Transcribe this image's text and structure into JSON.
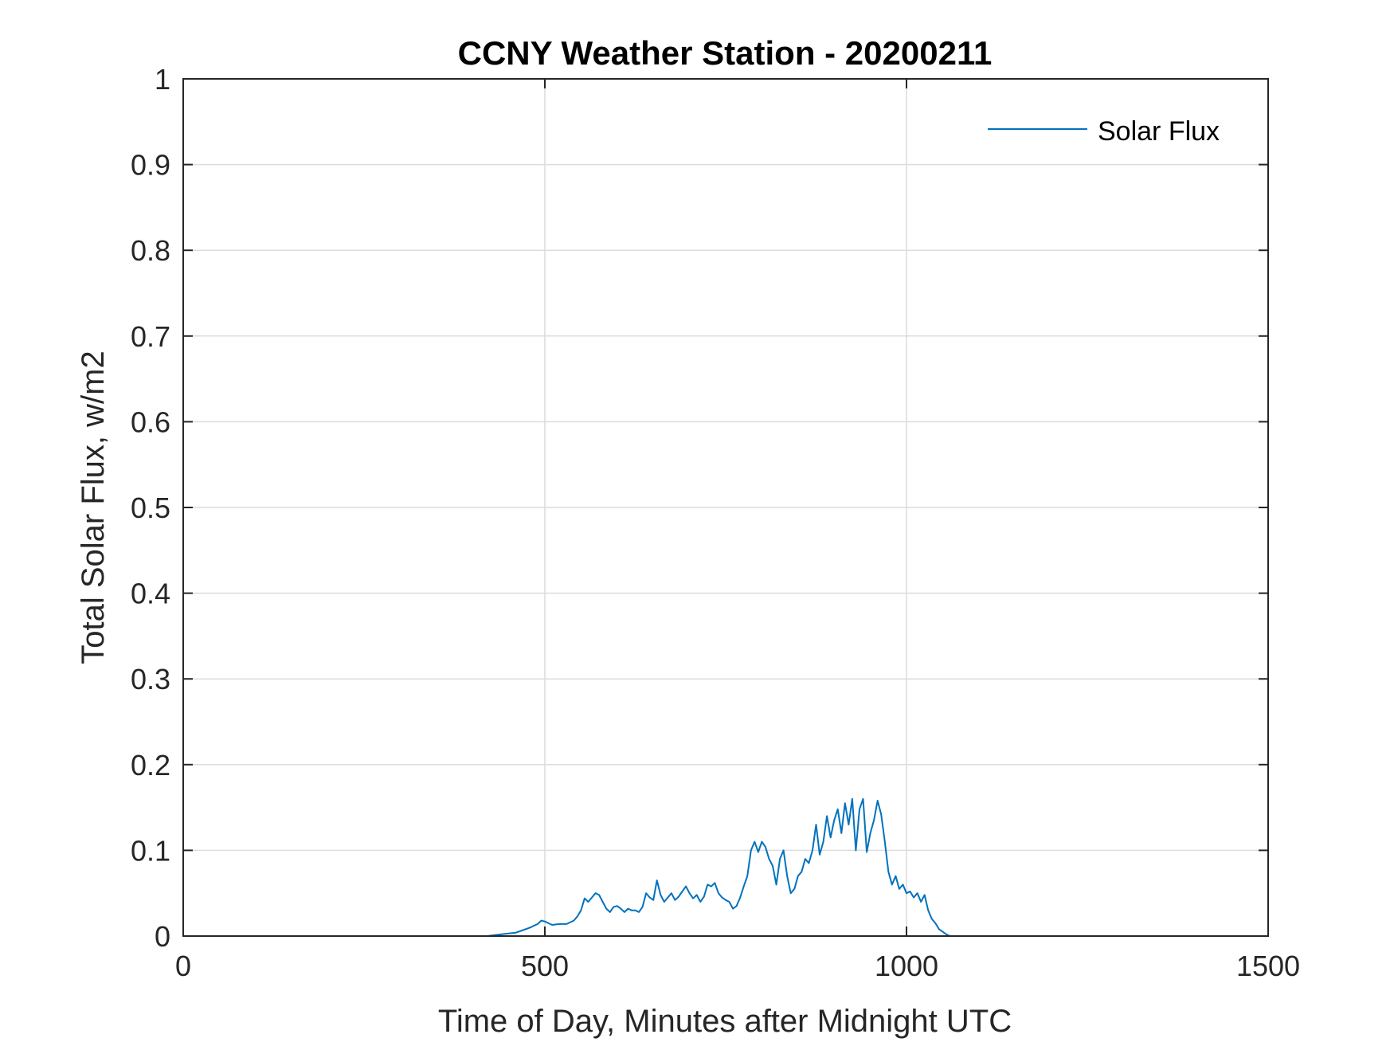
{
  "chart_data": {
    "type": "line",
    "title": "CCNY Weather Station - 20200211",
    "xlabel": "Time of Day, Minutes after Midnight UTC",
    "ylabel": "Total Solar Flux, w/m2",
    "xlim": [
      0,
      1500
    ],
    "ylim": [
      0,
      1
    ],
    "xticks": [
      0,
      500,
      1000,
      1500
    ],
    "xtick_labels": [
      "0",
      "500",
      "1000",
      "1500"
    ],
    "yticks": [
      0,
      0.1,
      0.2,
      0.3,
      0.4,
      0.5,
      0.6,
      0.7,
      0.8,
      0.9,
      1
    ],
    "ytick_labels": [
      "0",
      "0.1",
      "0.2",
      "0.3",
      "0.4",
      "0.5",
      "0.6",
      "0.7",
      "0.8",
      "0.9",
      "1"
    ],
    "grid": true,
    "legend_position": "top-right",
    "colors": {
      "series": "#0072BD",
      "axes": "#262626",
      "grid": "#dcdcdc"
    },
    "series": [
      {
        "name": "Solar Flux",
        "x": [
          0,
          100,
          200,
          300,
          400,
          420,
          440,
          460,
          470,
          480,
          490,
          495,
          500,
          505,
          510,
          520,
          530,
          540,
          545,
          550,
          555,
          560,
          565,
          570,
          575,
          580,
          585,
          590,
          595,
          600,
          605,
          610,
          615,
          620,
          625,
          630,
          635,
          640,
          645,
          650,
          655,
          660,
          665,
          670,
          675,
          680,
          685,
          690,
          695,
          700,
          705,
          710,
          715,
          720,
          725,
          730,
          735,
          740,
          745,
          750,
          755,
          760,
          765,
          770,
          775,
          780,
          785,
          790,
          795,
          800,
          805,
          810,
          815,
          820,
          825,
          830,
          835,
          840,
          845,
          850,
          855,
          860,
          865,
          870,
          875,
          880,
          885,
          890,
          895,
          900,
          905,
          910,
          915,
          920,
          925,
          930,
          935,
          940,
          945,
          950,
          955,
          960,
          965,
          970,
          975,
          980,
          985,
          990,
          995,
          1000,
          1005,
          1010,
          1015,
          1020,
          1025,
          1030,
          1035,
          1040,
          1045,
          1050,
          1055,
          1060,
          1100,
          1200,
          1300,
          1400,
          1440
        ],
        "y": [
          0,
          0,
          0,
          0,
          0,
          0,
          0.002,
          0.004,
          0.007,
          0.01,
          0.014,
          0.018,
          0.017,
          0.015,
          0.013,
          0.014,
          0.014,
          0.018,
          0.023,
          0.03,
          0.044,
          0.04,
          0.045,
          0.05,
          0.048,
          0.04,
          0.032,
          0.028,
          0.034,
          0.035,
          0.032,
          0.028,
          0.032,
          0.03,
          0.03,
          0.028,
          0.034,
          0.05,
          0.045,
          0.042,
          0.065,
          0.048,
          0.04,
          0.045,
          0.05,
          0.042,
          0.046,
          0.052,
          0.058,
          0.05,
          0.044,
          0.048,
          0.04,
          0.046,
          0.06,
          0.058,
          0.062,
          0.05,
          0.045,
          0.042,
          0.04,
          0.032,
          0.035,
          0.045,
          0.058,
          0.07,
          0.1,
          0.11,
          0.098,
          0.11,
          0.104,
          0.09,
          0.082,
          0.06,
          0.09,
          0.1,
          0.07,
          0.05,
          0.055,
          0.07,
          0.075,
          0.09,
          0.085,
          0.1,
          0.13,
          0.095,
          0.11,
          0.14,
          0.115,
          0.135,
          0.148,
          0.12,
          0.155,
          0.13,
          0.16,
          0.1,
          0.148,
          0.16,
          0.098,
          0.12,
          0.135,
          0.158,
          0.142,
          0.11,
          0.075,
          0.06,
          0.07,
          0.055,
          0.06,
          0.05,
          0.052,
          0.045,
          0.05,
          0.04,
          0.048,
          0.03,
          0.02,
          0.015,
          0.008,
          0.005,
          0.002,
          0,
          0,
          0,
          0,
          0,
          0
        ]
      }
    ]
  }
}
